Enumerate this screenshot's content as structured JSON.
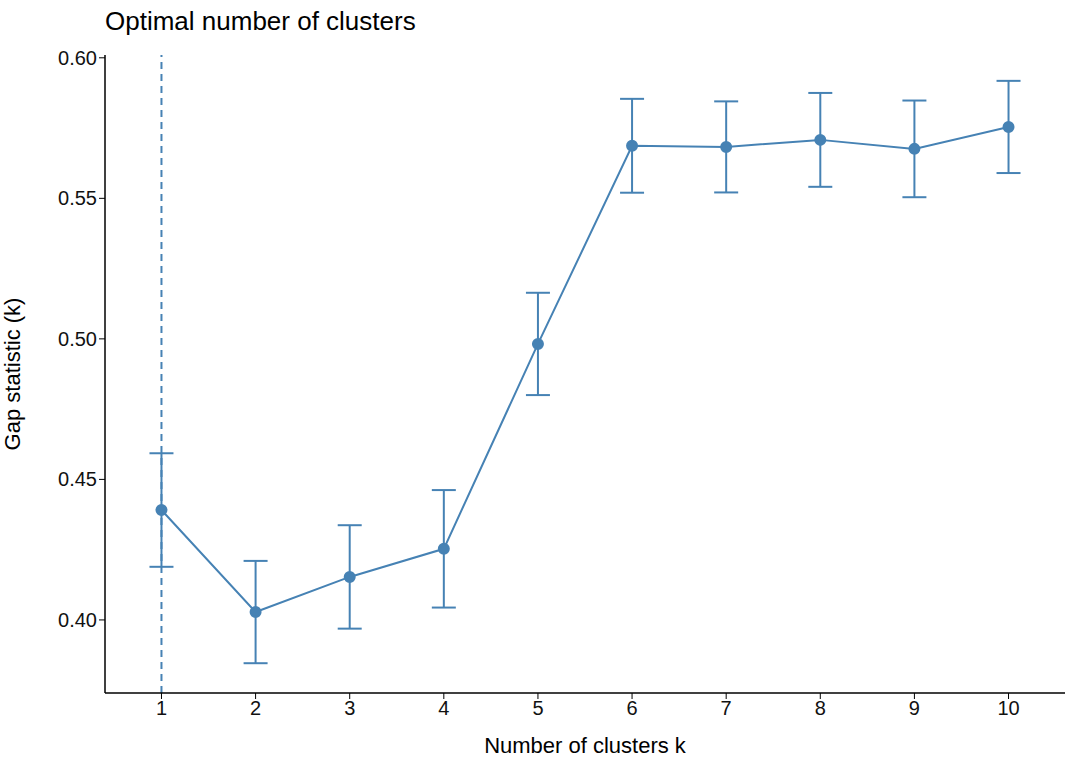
{
  "chart_data": {
    "type": "line",
    "title": "Optimal number of clusters",
    "x_label": "Number of clusters k",
    "y_label": "Gap statistic (k)",
    "x": [
      1,
      2,
      3,
      4,
      5,
      6,
      7,
      8,
      9,
      10
    ],
    "values": [
      0.4391,
      0.4028,
      0.4153,
      0.4253,
      0.4982,
      0.5687,
      0.5683,
      0.5708,
      0.5676,
      0.5754
    ],
    "error": [
      0.0202,
      0.0182,
      0.0184,
      0.0209,
      0.0182,
      0.0167,
      0.0162,
      0.0167,
      0.0172,
      0.0164
    ],
    "color": "#4682b4",
    "marker": "circle",
    "xlim": [
      0.4,
      10.6
    ],
    "xticks": [
      1,
      2,
      3,
      4,
      5,
      6,
      7,
      8,
      9,
      10
    ],
    "ylim": [
      0.374,
      0.601
    ],
    "yticks": [
      {
        "value": 0.4,
        "label": "0.40"
      },
      {
        "value": 0.45,
        "label": "0.45"
      },
      {
        "value": 0.5,
        "label": "0.50"
      },
      {
        "value": 0.55,
        "label": "0.55"
      },
      {
        "value": 0.6,
        "label": "0.60"
      }
    ],
    "optimal_k": 1,
    "grid": false
  }
}
